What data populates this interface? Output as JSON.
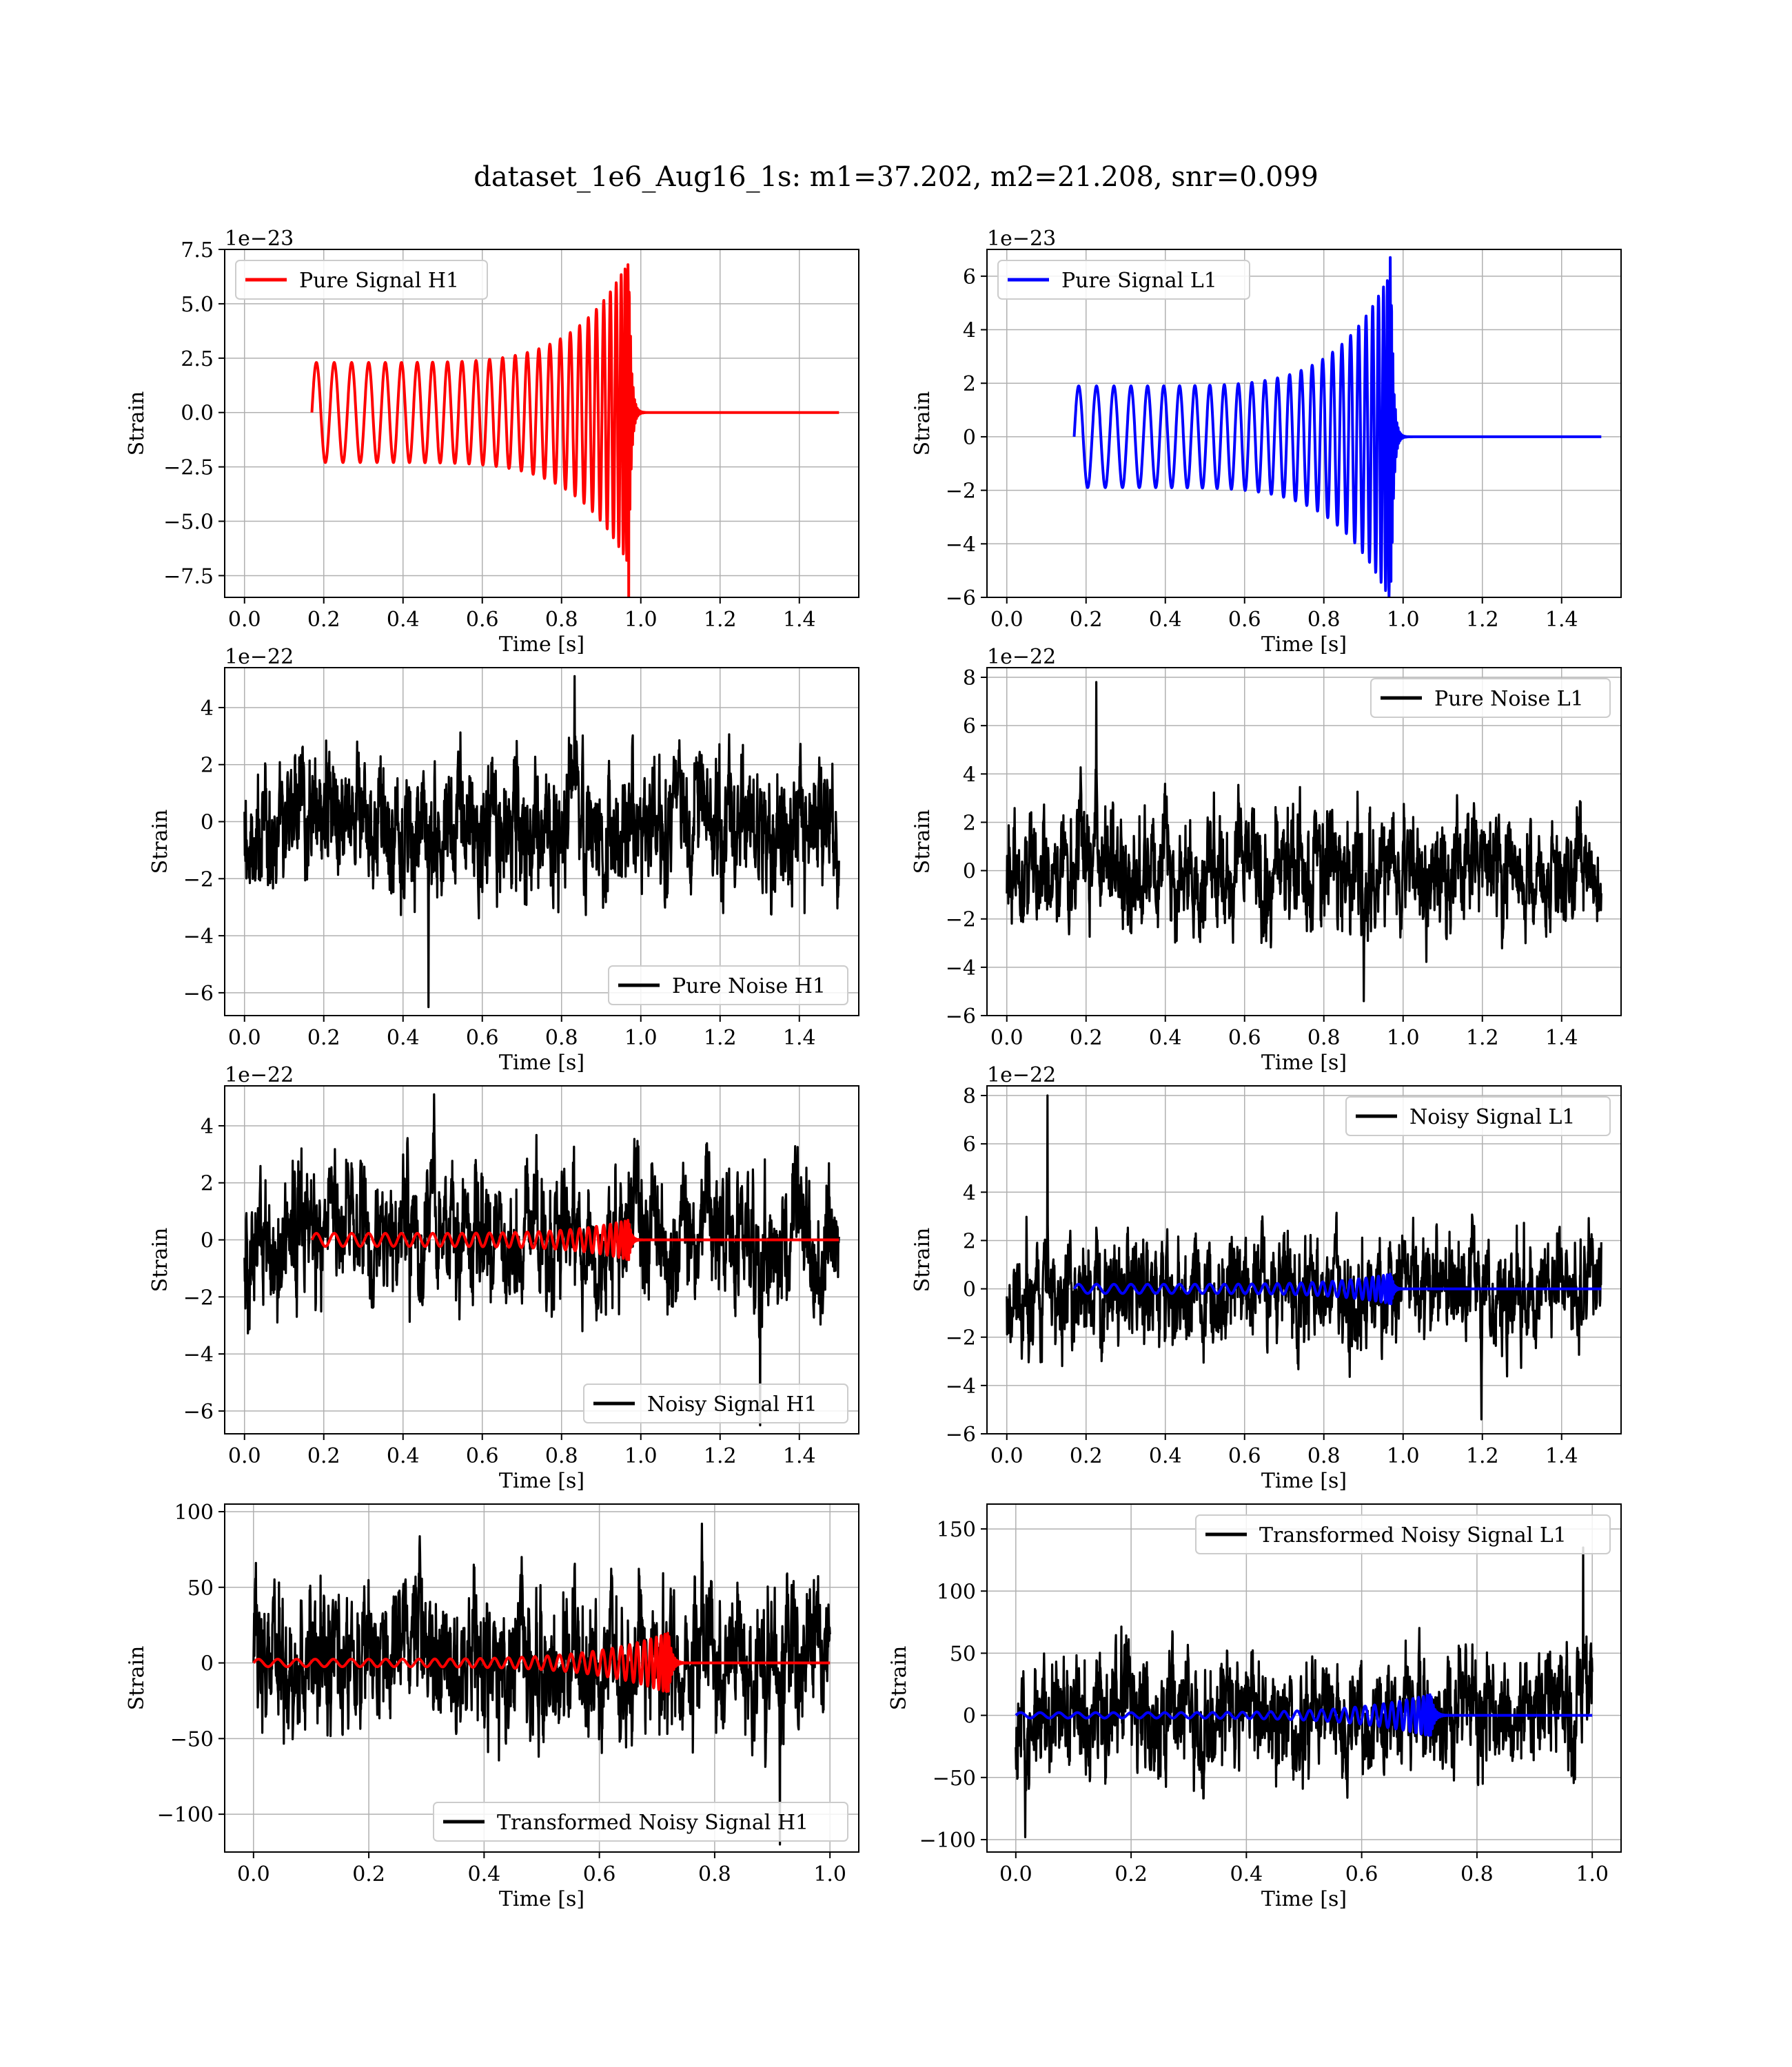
{
  "figure": {
    "title": "dataset_1e6_Aug16_1s: m1=37.202, m2=21.208, snr=0.099"
  },
  "chart_data": [
    {
      "id": "h1-signal",
      "type": "line",
      "ylabel": "Strain",
      "xlabel": "Time [s]",
      "offset_text": "1e−23",
      "xlim": [
        -0.05,
        1.55
      ],
      "ylim": [
        -8.5,
        7.5
      ],
      "xticks": [
        0.0,
        0.2,
        0.4,
        0.6,
        0.8,
        1.0,
        1.2,
        1.4
      ],
      "xtick_labels": [
        "0.0",
        "0.2",
        "0.4",
        "0.6",
        "0.8",
        "1.0",
        "1.2",
        "1.4"
      ],
      "yticks": [
        7.5,
        5.0,
        2.5,
        0.0,
        -2.5,
        -5.0,
        -7.5
      ],
      "ytick_labels": [
        "7.5",
        "5.0",
        "2.5",
        "0.0",
        "−2.5",
        "−5.0",
        "−7.5"
      ],
      "legend_position": "upper-left",
      "grid": true,
      "series": [
        {
          "name": "Pure Signal H1",
          "color": "#ff0000",
          "kind": "chirp",
          "t_start": 0.17,
          "t_merge": 0.97,
          "t_end": 1.5,
          "amp_start": 2.3,
          "amp_peak": 7.0,
          "min_value": -8.5,
          "max_value": 6.8,
          "cycles": 28
        }
      ]
    },
    {
      "id": "l1-signal",
      "type": "line",
      "ylabel": "Strain",
      "xlabel": "Time [s]",
      "offset_text": "1e−23",
      "xlim": [
        -0.05,
        1.55
      ],
      "ylim": [
        -6,
        7
      ],
      "xticks": [
        0.0,
        0.2,
        0.4,
        0.6,
        0.8,
        1.0,
        1.2,
        1.4
      ],
      "xtick_labels": [
        "0.0",
        "0.2",
        "0.4",
        "0.6",
        "0.8",
        "1.0",
        "1.2",
        "1.4"
      ],
      "yticks": [
        6,
        4,
        2,
        0,
        -2,
        -4,
        -6
      ],
      "ytick_labels": [
        "6",
        "4",
        "2",
        "0",
        "−2",
        "−4",
        "−6"
      ],
      "legend_position": "upper-left",
      "grid": true,
      "series": [
        {
          "name": "Pure Signal L1",
          "color": "#0000ff",
          "kind": "chirp",
          "t_start": 0.17,
          "t_merge": 0.97,
          "t_end": 1.5,
          "amp_start": 1.9,
          "amp_peak": 6.2,
          "min_value": -5.4,
          "max_value": 6.7,
          "cycles": 28
        }
      ]
    },
    {
      "id": "h1-noise",
      "type": "line",
      "ylabel": "Strain",
      "xlabel": "Time [s]",
      "offset_text": "1e−22",
      "xlim": [
        -0.05,
        1.55
      ],
      "ylim": [
        -6.8,
        5.4
      ],
      "xticks": [
        0.0,
        0.2,
        0.4,
        0.6,
        0.8,
        1.0,
        1.2,
        1.4
      ],
      "xtick_labels": [
        "0.0",
        "0.2",
        "0.4",
        "0.6",
        "0.8",
        "1.0",
        "1.2",
        "1.4"
      ],
      "yticks": [
        4,
        2,
        0,
        -2,
        -4,
        -6
      ],
      "ytick_labels": [
        "4",
        "2",
        "0",
        "−2",
        "−4",
        "−6"
      ],
      "legend_position": "lower-right",
      "grid": true,
      "series": [
        {
          "name": "Pure Noise H1",
          "color": "#000000",
          "kind": "noise",
          "t_start": 0.0,
          "t_end": 1.5,
          "spread": 1.4,
          "min_value": -6.5,
          "max_value": 5.1
        }
      ]
    },
    {
      "id": "l1-noise",
      "type": "line",
      "ylabel": "Strain",
      "xlabel": "Time [s]",
      "offset_text": "1e−22",
      "xlim": [
        -0.05,
        1.55
      ],
      "ylim": [
        -6,
        8.4
      ],
      "xticks": [
        0.0,
        0.2,
        0.4,
        0.6,
        0.8,
        1.0,
        1.2,
        1.4
      ],
      "xtick_labels": [
        "0.0",
        "0.2",
        "0.4",
        "0.6",
        "0.8",
        "1.0",
        "1.2",
        "1.4"
      ],
      "yticks": [
        8,
        6,
        4,
        2,
        0,
        -2,
        -4,
        -6
      ],
      "ytick_labels": [
        "8",
        "6",
        "4",
        "2",
        "0",
        "−2",
        "−4",
        "−6"
      ],
      "legend_position": "upper-right",
      "grid": true,
      "series": [
        {
          "name": "Pure Noise L1",
          "color": "#000000",
          "kind": "noise",
          "t_start": 0.0,
          "t_end": 1.5,
          "spread": 1.4,
          "min_value": -5.4,
          "max_value": 7.8
        }
      ]
    },
    {
      "id": "h1-noisy",
      "type": "line",
      "ylabel": "Strain",
      "xlabel": "Time [s]",
      "offset_text": "1e−22",
      "xlim": [
        -0.05,
        1.55
      ],
      "ylim": [
        -6.8,
        5.4
      ],
      "xticks": [
        0.0,
        0.2,
        0.4,
        0.6,
        0.8,
        1.0,
        1.2,
        1.4
      ],
      "xtick_labels": [
        "0.0",
        "0.2",
        "0.4",
        "0.6",
        "0.8",
        "1.0",
        "1.2",
        "1.4"
      ],
      "yticks": [
        4,
        2,
        0,
        -2,
        -4,
        -6
      ],
      "ytick_labels": [
        "4",
        "2",
        "0",
        "−2",
        "−4",
        "−6"
      ],
      "legend_position": "lower-right",
      "grid": true,
      "series": [
        {
          "name": "Noisy Signal H1",
          "color": "#000000",
          "kind": "noise",
          "t_start": 0.0,
          "t_end": 1.5,
          "spread": 1.4,
          "min_value": -6.5,
          "max_value": 5.1
        },
        {
          "color": "#ff0000",
          "kind": "chirp",
          "t_start": 0.17,
          "t_merge": 0.97,
          "t_end": 1.5,
          "amp_start": 0.23,
          "amp_peak": 0.7,
          "cycles": 28
        }
      ]
    },
    {
      "id": "l1-noisy",
      "type": "line",
      "ylabel": "Strain",
      "xlabel": "Time [s]",
      "offset_text": "1e−22",
      "xlim": [
        -0.05,
        1.55
      ],
      "ylim": [
        -6,
        8.4
      ],
      "xticks": [
        0.0,
        0.2,
        0.4,
        0.6,
        0.8,
        1.0,
        1.2,
        1.4
      ],
      "xtick_labels": [
        "0.0",
        "0.2",
        "0.4",
        "0.6",
        "0.8",
        "1.0",
        "1.2",
        "1.4"
      ],
      "yticks": [
        8,
        6,
        4,
        2,
        0,
        -2,
        -4,
        -6
      ],
      "ytick_labels": [
        "8",
        "6",
        "4",
        "2",
        "0",
        "−2",
        "−4",
        "−6"
      ],
      "legend_position": "upper-right",
      "grid": true,
      "series": [
        {
          "name": "Noisy Signal L1",
          "color": "#000000",
          "kind": "noise",
          "t_start": 0.0,
          "t_end": 1.5,
          "spread": 1.4,
          "min_value": -5.4,
          "max_value": 8.0
        },
        {
          "color": "#0000ff",
          "kind": "chirp",
          "t_start": 0.17,
          "t_merge": 0.97,
          "t_end": 1.5,
          "amp_start": 0.19,
          "amp_peak": 0.62,
          "cycles": 28
        }
      ]
    },
    {
      "id": "h1-transformed",
      "type": "line",
      "ylabel": "Strain",
      "xlabel": "Time [s]",
      "offset_text": "",
      "xlim": [
        -0.05,
        1.05
      ],
      "ylim": [
        -125,
        105
      ],
      "xticks": [
        0.0,
        0.2,
        0.4,
        0.6,
        0.8,
        1.0
      ],
      "xtick_labels": [
        "0.0",
        "0.2",
        "0.4",
        "0.6",
        "0.8",
        "1.0"
      ],
      "yticks": [
        100,
        50,
        0,
        -50,
        -100
      ],
      "ytick_labels": [
        "100",
        "50",
        "0",
        "−50",
        "−100"
      ],
      "legend_position": "lower-right",
      "grid": true,
      "series": [
        {
          "name": "Transformed Noisy Signal H1",
          "color": "#000000",
          "kind": "noise",
          "t_start": 0.0,
          "t_end": 1.0,
          "spread": 28,
          "min_value": -120,
          "max_value": 92
        },
        {
          "color": "#ff0000",
          "kind": "chirp",
          "t_start": 0.0,
          "t_merge": 0.72,
          "t_end": 1.0,
          "amp_start": 2.5,
          "amp_peak": 20,
          "cycles": 34
        }
      ]
    },
    {
      "id": "l1-transformed",
      "type": "line",
      "ylabel": "Strain",
      "xlabel": "Time [s]",
      "offset_text": "",
      "xlim": [
        -0.05,
        1.05
      ],
      "ylim": [
        -110,
        170
      ],
      "xticks": [
        0.0,
        0.2,
        0.4,
        0.6,
        0.8,
        1.0
      ],
      "xtick_labels": [
        "0.0",
        "0.2",
        "0.4",
        "0.6",
        "0.8",
        "1.0"
      ],
      "yticks": [
        150,
        100,
        50,
        0,
        -50,
        -100
      ],
      "ytick_labels": [
        "150",
        "100",
        "50",
        "0",
        "−50",
        "−100"
      ],
      "legend_position": "upper-right",
      "grid": true,
      "series": [
        {
          "name": "Transformed Noisy Signal L1",
          "color": "#000000",
          "kind": "noise",
          "t_start": 0.0,
          "t_end": 1.0,
          "spread": 28,
          "min_value": -98,
          "max_value": 135
        },
        {
          "color": "#0000ff",
          "kind": "chirp",
          "t_start": 0.0,
          "t_merge": 0.72,
          "t_end": 1.0,
          "amp_start": 2.2,
          "amp_peak": 17,
          "cycles": 34
        }
      ]
    }
  ]
}
